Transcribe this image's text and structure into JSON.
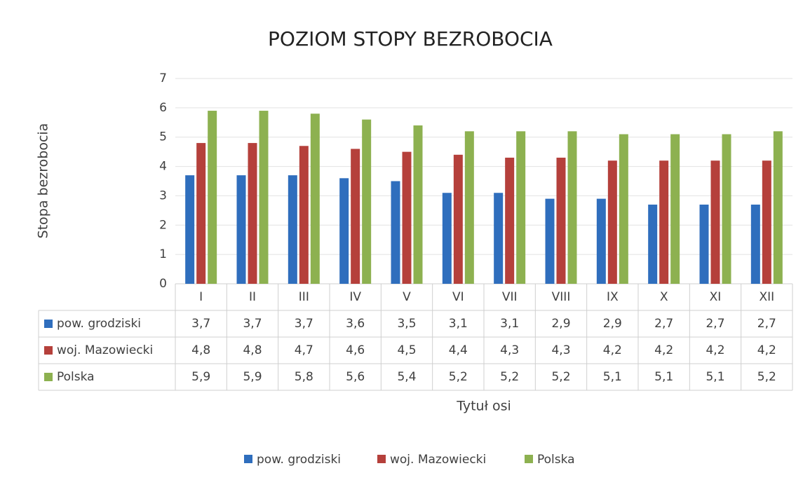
{
  "chart_data": {
    "type": "bar",
    "title": "POZIOM STOPY BEZROBOCIA",
    "y_axis_label": "Stopa bezrobocia",
    "x_axis_label": "Tytuł osi",
    "categories": [
      "I",
      "II",
      "III",
      "IV",
      "V",
      "VI",
      "VII",
      "VIII",
      "IX",
      "X",
      "XI",
      "XII"
    ],
    "series": [
      {
        "name": "pow. grodziski",
        "color": "#2f6ebd",
        "values": [
          3.7,
          3.7,
          3.7,
          3.6,
          3.5,
          3.1,
          3.1,
          2.9,
          2.9,
          2.7,
          2.7,
          2.7
        ],
        "value_labels": [
          "3,7",
          "3,7",
          "3,7",
          "3,6",
          "3,5",
          "3,1",
          "3,1",
          "2,9",
          "2,9",
          "2,7",
          "2,7",
          "2,7"
        ]
      },
      {
        "name": "woj. Mazowiecki",
        "color": "#b5403b",
        "values": [
          4.8,
          4.8,
          4.7,
          4.6,
          4.5,
          4.4,
          4.3,
          4.3,
          4.2,
          4.2,
          4.2,
          4.2
        ],
        "value_labels": [
          "4,8",
          "4,8",
          "4,7",
          "4,6",
          "4,5",
          "4,4",
          "4,3",
          "4,3",
          "4,2",
          "4,2",
          "4,2",
          "4,2"
        ]
      },
      {
        "name": "Polska",
        "color": "#8db150",
        "values": [
          5.9,
          5.9,
          5.8,
          5.6,
          5.4,
          5.2,
          5.2,
          5.2,
          5.1,
          5.1,
          5.1,
          5.2
        ],
        "value_labels": [
          "5,9",
          "5,9",
          "5,8",
          "5,6",
          "5,4",
          "5,2",
          "5,2",
          "5,2",
          "5,1",
          "5,1",
          "5,1",
          "5,2"
        ]
      }
    ],
    "ylim": [
      0,
      7
    ],
    "yticks": [
      0,
      1,
      2,
      3,
      4,
      5,
      6,
      7
    ],
    "grid": true,
    "legend": "bottom"
  }
}
